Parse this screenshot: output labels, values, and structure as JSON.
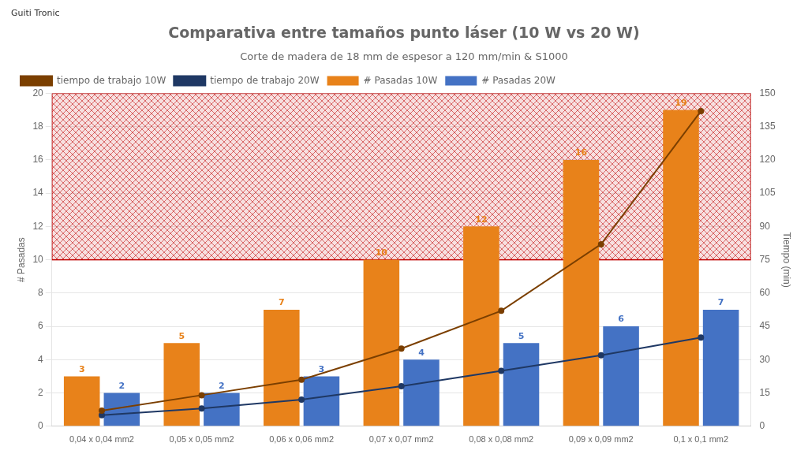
{
  "chart_data": {
    "type": "bar",
    "title": "Comparativa entre tamaños punto láser (10 W vs 20 W)",
    "subtitle": "Corte de madera de 18 mm de espesor a 120 mm/min & S1000",
    "annotations": [
      "Guiti Tronic"
    ],
    "categories": [
      "0,04 x 0,04 mm2",
      "0,05 x 0,05 mm2",
      "0,06 x 0,06 mm2",
      "0,07 x 0,07 mm2",
      "0,08 x 0,08 mm2",
      "0,09 x 0,09 mm2",
      "0,1 x 0,1 mm2"
    ],
    "series": [
      {
        "name": "# Pasadas 10W",
        "type": "bar",
        "color": "#E8821A",
        "values": [
          3,
          5,
          7,
          10,
          12,
          16,
          19
        ],
        "data_labels": true
      },
      {
        "name": "# Pasadas 20W",
        "type": "bar",
        "color": "#4472C4",
        "values": [
          2,
          2,
          3,
          4,
          5,
          6,
          7
        ],
        "data_labels": true
      },
      {
        "name": "tiempo de trabajo 10W",
        "type": "line",
        "axis": "y2",
        "color": "#7B3F00",
        "values": [
          7,
          14,
          21,
          35,
          52,
          82,
          142
        ]
      },
      {
        "name": "tiempo de trabajo 20W",
        "type": "line",
        "axis": "y2",
        "color": "#1F3864",
        "values": [
          5,
          8,
          12,
          18,
          25,
          32,
          40
        ]
      }
    ],
    "ylabel": "# Pasadas",
    "y2label": "Tiempo (min)",
    "ylim": [
      0,
      20
    ],
    "yticks": [
      0,
      2,
      4,
      6,
      8,
      10,
      12,
      14,
      16,
      18,
      20
    ],
    "y2lim": [
      0,
      150
    ],
    "y2ticks": [
      0,
      15,
      30,
      45,
      60,
      75,
      90,
      105,
      120,
      135,
      150
    ],
    "threshold": {
      "value": 10,
      "color": "#C00000"
    },
    "grid": true,
    "legend": "upper left"
  }
}
